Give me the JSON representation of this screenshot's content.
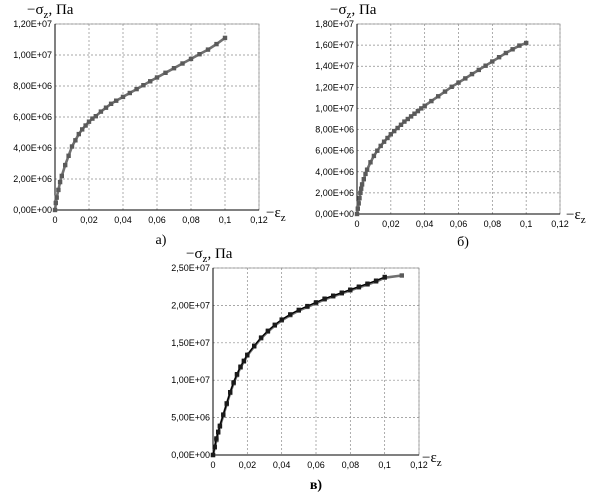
{
  "chart_data": [
    {
      "type": "line",
      "panel_label": "а)",
      "y_axis_label": {
        "main": "−σ",
        "sub": "z",
        "unit": ", Па"
      },
      "x_axis_label": {
        "main": "−ε",
        "sub": "z"
      },
      "x_ticks": [
        "0",
        "0,02",
        "0,04",
        "0,06",
        "0,08",
        "0,1",
        "0,12"
      ],
      "y_ticks": [
        "0,00E+00",
        "2,00E+06",
        "4,00E+06",
        "6,00E+06",
        "8,00E+06",
        "1,00E+07",
        "1,20E+07"
      ],
      "xlim": [
        0,
        0.12
      ],
      "ylim": [
        0,
        12000000
      ],
      "grid": true,
      "series": [
        {
          "color": "#707070",
          "marker": "square",
          "x": [
            0,
            0.0005,
            0.001,
            0.002,
            0.003,
            0.004,
            0.006,
            0.008,
            0.01,
            0.012,
            0.014,
            0.016,
            0.018,
            0.02,
            0.022,
            0.024,
            0.027,
            0.03,
            0.033,
            0.036,
            0.04,
            0.044,
            0.048,
            0.052,
            0.056,
            0.06,
            0.065,
            0.07,
            0.075,
            0.08,
            0.085,
            0.09,
            0.095,
            0.1
          ],
          "y": [
            0,
            450000,
            800000,
            1300000,
            1800000,
            2200000,
            2900000,
            3500000,
            4100000,
            4500000,
            4900000,
            5200000,
            5450000,
            5700000,
            5900000,
            6050000,
            6350000,
            6600000,
            6850000,
            7050000,
            7300000,
            7550000,
            7800000,
            8050000,
            8300000,
            8550000,
            8850000,
            9150000,
            9450000,
            9750000,
            10050000,
            10350000,
            10700000,
            11100000
          ]
        }
      ]
    },
    {
      "type": "line",
      "panel_label": "б)",
      "y_axis_label": {
        "main": "−σ",
        "sub": "z",
        "unit": ", Па"
      },
      "x_axis_label": {
        "main": "−ε",
        "sub": "z"
      },
      "x_ticks": [
        "0",
        "0,02",
        "0,04",
        "0,06",
        "0,08",
        "0,1",
        "0,12"
      ],
      "y_ticks": [
        "0,00E+00",
        "2,00E+06",
        "4,00E+06",
        "6,00E+06",
        "8,00E+06",
        "1,00E+07",
        "1,20E+07",
        "1,40E+07",
        "1,60E+07",
        "1,80E+07"
      ],
      "xlim": [
        0,
        0.12
      ],
      "ylim": [
        0,
        18000000
      ],
      "grid": true,
      "series": [
        {
          "color": "#707070",
          "marker": "square",
          "x": [
            0,
            0.0005,
            0.001,
            0.0015,
            0.002,
            0.0025,
            0.003,
            0.004,
            0.005,
            0.006,
            0.008,
            0.01,
            0.012,
            0.014,
            0.016,
            0.018,
            0.02,
            0.022,
            0.024,
            0.026,
            0.028,
            0.03,
            0.032,
            0.034,
            0.036,
            0.038,
            0.04,
            0.044,
            0.048,
            0.052,
            0.056,
            0.06,
            0.064,
            0.068,
            0.072,
            0.076,
            0.08,
            0.084,
            0.088,
            0.092,
            0.096,
            0.1
          ],
          "y": [
            0,
            500000,
            1000000,
            1500000,
            2000000,
            2400000,
            2800000,
            3300000,
            3800000,
            4200000,
            4900000,
            5500000,
            6000000,
            6450000,
            6850000,
            7200000,
            7550000,
            7850000,
            8150000,
            8450000,
            8750000,
            9000000,
            9250000,
            9500000,
            9750000,
            10000000,
            10250000,
            10700000,
            11150000,
            11600000,
            12050000,
            12450000,
            12850000,
            13250000,
            13650000,
            14050000,
            14450000,
            14850000,
            15250000,
            15600000,
            15950000,
            16200000
          ]
        }
      ]
    },
    {
      "type": "line",
      "panel_label": "в)",
      "y_axis_label": {
        "main": "−σ",
        "sub": "z",
        "unit": ", Па"
      },
      "x_axis_label": {
        "main": "−ε",
        "sub": "z"
      },
      "x_ticks": [
        "0",
        "0,02",
        "0,04",
        "0,06",
        "0,08",
        "0,1",
        "0,12"
      ],
      "y_ticks": [
        "0,00E+00",
        "5,00E+06",
        "1,00E+07",
        "1,50E+07",
        "2,00E+07",
        "2,50E+07"
      ],
      "xlim": [
        0,
        0.12
      ],
      "ylim": [
        0,
        25000000
      ],
      "grid": true,
      "series": [
        {
          "color": "#707070",
          "marker": "square",
          "x": [
            0,
            0.001,
            0.002,
            0.003,
            0.004,
            0.006,
            0.008,
            0.01,
            0.012,
            0.014,
            0.016,
            0.018,
            0.02,
            0.024,
            0.028,
            0.032,
            0.036,
            0.04,
            0.045,
            0.05,
            0.055,
            0.06,
            0.065,
            0.07,
            0.075,
            0.08,
            0.085,
            0.09,
            0.095,
            0.1,
            0.11
          ],
          "y": [
            0,
            1000000,
            2000000,
            3000000,
            3800000,
            5300000,
            6800000,
            8300000,
            9600000,
            10700000,
            11700000,
            12500000,
            13300000,
            14500000,
            15600000,
            16500000,
            17300000,
            18000000,
            18700000,
            19300000,
            19800000,
            20300000,
            20800000,
            21200000,
            21600000,
            22000000,
            22400000,
            22800000,
            23200000,
            23700000,
            24000000
          ]
        },
        {
          "color": "#000000",
          "marker": "square",
          "x": [
            0,
            0.001,
            0.002,
            0.003,
            0.004,
            0.006,
            0.008,
            0.01,
            0.012,
            0.014,
            0.016,
            0.018,
            0.02,
            0.024,
            0.028,
            0.032,
            0.036,
            0.04,
            0.045,
            0.05,
            0.055,
            0.06,
            0.065,
            0.07,
            0.075,
            0.08,
            0.085,
            0.09,
            0.095,
            0.1
          ],
          "y": [
            0,
            1100000,
            2200000,
            3100000,
            3900000,
            5400000,
            6900000,
            8400000,
            9700000,
            10800000,
            11800000,
            12600000,
            13400000,
            14600000,
            15700000,
            16600000,
            17400000,
            18100000,
            18800000,
            19400000,
            19900000,
            20400000,
            20900000,
            21300000,
            21700000,
            22100000,
            22500000,
            22900000,
            23300000,
            23800000
          ]
        }
      ]
    }
  ]
}
